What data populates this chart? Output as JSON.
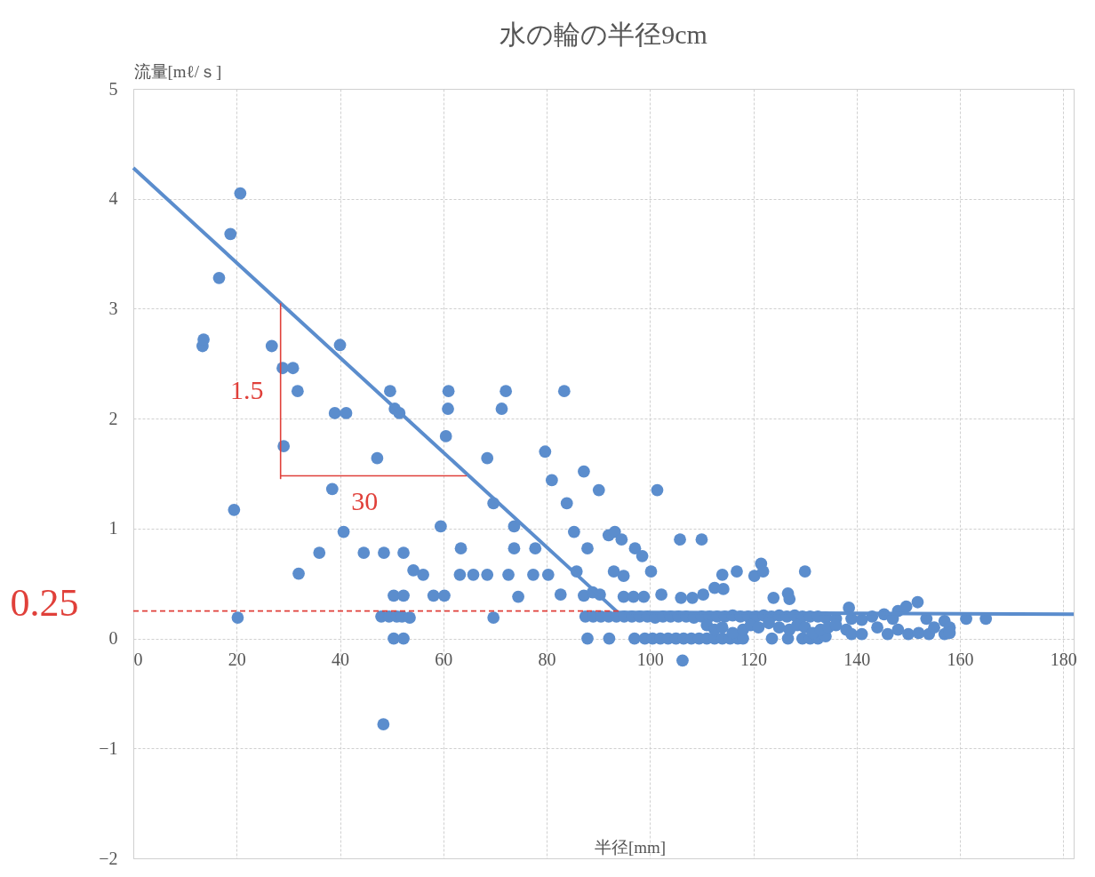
{
  "chart_data": {
    "type": "scatter",
    "title": "水の輪の半径9cm",
    "xlabel": "半径[mm]",
    "ylabel": "流量[mℓ/ｓ]",
    "xlim": [
      0,
      182
    ],
    "ylim": [
      -2,
      5
    ],
    "xticks": [
      0,
      20,
      40,
      60,
      80,
      100,
      120,
      140,
      160,
      180
    ],
    "yticks": [
      -2,
      -1,
      0,
      1,
      2,
      3,
      4,
      5
    ],
    "grid": true,
    "annotations": [
      "1.5",
      "30",
      "0.25"
    ],
    "series": [
      {
        "marker": "circle",
        "color": "#5b8dcd",
        "x": [
          13.4,
          13.6,
          16.6,
          18.8,
          20.7,
          19.5,
          20.2,
          26.8,
          28.9,
          30.9,
          31.8,
          29.1,
          32,
          36,
          38.5,
          39,
          41.2,
          40,
          40.7,
          44.6,
          47.2,
          48.5,
          48.4,
          49.7,
          50.6,
          51.5,
          52.3,
          54.2,
          56.1,
          50.4,
          52.3,
          58.1,
          60.2,
          48,
          49.5,
          51,
          52,
          53.5,
          50.4,
          52.3,
          59.5,
          60.5,
          60.9,
          61,
          63.4,
          63.2,
          65.8,
          68.5,
          68.5,
          69.7,
          69.7,
          71.3,
          72.1,
          72.6,
          73.7,
          73.7,
          74.5,
          77.4,
          77.8,
          79.7,
          80.3,
          81,
          82.7,
          83.4,
          83.9,
          85.3,
          85.8,
          87.2,
          87.9,
          87.2,
          88.9,
          90.3,
          90.1,
          92,
          93.2,
          94.5,
          93,
          94.9,
          94.9,
          96.8,
          98.8,
          97.1,
          98.5,
          100.2,
          101.4,
          102.2,
          105.8,
          106,
          108.2,
          110.3,
          110,
          106.3,
          112.5,
          114.2,
          114,
          116.8,
          120.2,
          121.5,
          121.9,
          123.9,
          126.7,
          127,
          130,
          138.5,
          145.3,
          148,
          149.6,
          151.8,
          153.5,
          161.2,
          165,
          157,
          158,
          87.9,
          92.1,
          97,
          99,
          100.5,
          102,
          103.5,
          105,
          106.5,
          108,
          109.5,
          111,
          112.5,
          114,
          115.5,
          117,
          118,
          123.6,
          126.7,
          129.5,
          131,
          132.5,
          134,
          87.5,
          89,
          90.5,
          92,
          93.5,
          95,
          96.5,
          98,
          99.5,
          101,
          102.5,
          104,
          105.5,
          107,
          108.5,
          110,
          111.5,
          113,
          114.5,
          116,
          117.5,
          119,
          120.5,
          122,
          123.5,
          125,
          126.5,
          128,
          129.5,
          131,
          132.5,
          134,
          136,
          139,
          141,
          143,
          147,
          111,
          112.5,
          114,
          116,
          118,
          119.5,
          121,
          123,
          125,
          127,
          128.5,
          130,
          131.5,
          133,
          134.5,
          136,
          138,
          139,
          141,
          144,
          146,
          148,
          150,
          152,
          154,
          155,
          157,
          158
        ],
        "values": [
          2.66,
          2.72,
          3.28,
          3.68,
          4.05,
          1.17,
          0.19,
          2.66,
          2.46,
          2.46,
          2.25,
          1.75,
          0.59,
          0.78,
          1.36,
          2.05,
          2.05,
          2.67,
          0.97,
          0.78,
          1.64,
          0.78,
          -0.78,
          2.25,
          2.09,
          2.05,
          0.78,
          0.62,
          0.58,
          0.39,
          0.39,
          0.39,
          0.39,
          0.2,
          0.2,
          0.2,
          0.2,
          0.19,
          0,
          0,
          1.02,
          1.84,
          2.09,
          2.25,
          0.82,
          0.58,
          0.58,
          0.58,
          1.64,
          1.23,
          0.19,
          2.09,
          2.25,
          0.58,
          1.02,
          0.82,
          0.38,
          0.58,
          0.82,
          1.7,
          0.58,
          1.44,
          0.4,
          2.25,
          1.23,
          0.97,
          0.61,
          1.52,
          0.82,
          0.39,
          0.42,
          0.4,
          1.35,
          0.94,
          0.97,
          0.9,
          0.61,
          0.57,
          0.38,
          0.38,
          0.38,
          0.82,
          0.75,
          0.61,
          1.35,
          0.4,
          0.9,
          0.37,
          0.37,
          0.4,
          0.9,
          -0.2,
          0.46,
          0.45,
          0.58,
          0.61,
          0.57,
          0.68,
          0.61,
          0.37,
          0.41,
          0.36,
          0.61,
          0.28,
          0.22,
          0.25,
          0.29,
          0.33,
          0.18,
          0.18,
          0.18,
          0.16,
          0.1,
          0,
          0,
          0,
          0,
          0,
          0,
          0,
          0,
          0,
          0,
          0,
          0,
          0,
          0,
          0,
          0,
          0,
          0,
          0,
          0,
          0,
          0,
          0.02,
          0.2,
          0.2,
          0.2,
          0.2,
          0.2,
          0.2,
          0.2,
          0.2,
          0.2,
          0.19,
          0.2,
          0.2,
          0.2,
          0.2,
          0.19,
          0.2,
          0.2,
          0.2,
          0.2,
          0.21,
          0.2,
          0.2,
          0.2,
          0.21,
          0.2,
          0.21,
          0.2,
          0.21,
          0.2,
          0.2,
          0.2,
          0.19,
          0.18,
          0.18,
          0.17,
          0.2,
          0.18,
          0.12,
          0.08,
          0.1,
          0.05,
          0.08,
          0.12,
          0.1,
          0.14,
          0.1,
          0.08,
          0.12,
          0.1,
          0.05,
          0.08,
          0.1,
          0.12,
          0.08,
          0.04,
          0.04,
          0.1,
          0.04,
          0.08,
          0.04,
          0.05,
          0.04,
          0.1,
          0.04,
          0.05
        ]
      },
      {
        "type": "line",
        "color": "#5b8dcd",
        "x": [
          0,
          93.7,
          182
        ],
        "values": [
          4.28,
          0.24,
          0.22
        ]
      },
      {
        "type": "line",
        "color": "#e0403a",
        "x": [
          28.5,
          28.5
        ],
        "values": [
          3.05,
          1.45
        ]
      },
      {
        "type": "line",
        "color": "#e0403a",
        "x": [
          28.5,
          64.5
        ],
        "values": [
          1.48,
          1.48
        ]
      },
      {
        "type": "line",
        "color": "#e0403a",
        "line_style": "dashed",
        "x": [
          0,
          94
        ],
        "values": [
          0.25,
          0.25
        ]
      }
    ]
  }
}
